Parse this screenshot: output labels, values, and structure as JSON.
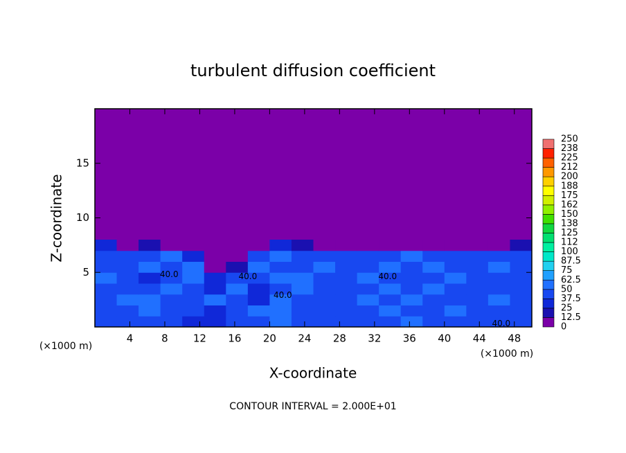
{
  "chart_data": {
    "type": "heatmap",
    "title": "turbulent diffusion coefficient",
    "x_label": "X-coordinate",
    "y_label": "Z-coordinate",
    "x_unit": "(×1000 m)",
    "y_unit": "(×1000 m)",
    "footer": "CONTOUR INTERVAL = 2.000E+01",
    "xlim": [
      0,
      50
    ],
    "ylim": [
      0,
      20
    ],
    "xticks": [
      4,
      8,
      12,
      16,
      20,
      24,
      28,
      32,
      36,
      40,
      44,
      48
    ],
    "yticks": [
      5,
      10,
      15
    ],
    "x": [
      1.25,
      3.75,
      6.25,
      8.75,
      11.25,
      13.75,
      16.25,
      18.75,
      21.25,
      23.75,
      26.25,
      28.75,
      31.25,
      33.75,
      36.25,
      38.75,
      41.25,
      43.75,
      46.25,
      48.75
    ],
    "y": [
      0.5,
      1.5,
      2.5,
      3.5,
      4.5,
      5.5,
      6.5,
      7.5
    ],
    "z": [
      [
        40,
        45,
        38,
        42,
        30,
        35,
        45,
        40,
        55,
        48,
        42,
        38,
        45,
        40,
        50,
        42,
        38,
        45,
        40,
        42
      ],
      [
        45,
        40,
        50,
        42,
        48,
        35,
        42,
        55,
        60,
        45,
        40,
        48,
        42,
        50,
        45,
        40,
        55,
        48,
        38,
        45
      ],
      [
        38,
        50,
        55,
        40,
        45,
        55,
        42,
        35,
        58,
        40,
        45,
        42,
        50,
        40,
        55,
        48,
        40,
        42,
        50,
        40
      ],
      [
        45,
        42,
        48,
        52,
        40,
        25,
        58,
        30,
        48,
        52,
        40,
        45,
        38,
        55,
        42,
        50,
        45,
        40,
        48,
        42
      ],
      [
        50,
        40,
        35,
        48,
        55,
        30,
        40,
        45,
        50,
        55,
        42,
        48,
        52,
        40,
        48,
        45,
        50,
        42,
        45,
        48
      ],
      [
        40,
        48,
        55,
        42,
        50,
        10,
        20,
        52,
        45,
        48,
        55,
        40,
        45,
        50,
        42,
        55,
        40,
        45,
        50,
        42
      ],
      [
        42,
        45,
        40,
        50,
        35,
        0,
        0,
        45,
        50,
        40,
        42,
        48,
        40,
        45,
        52,
        40,
        48,
        42,
        40,
        45
      ],
      [
        30,
        0,
        20,
        0,
        0,
        0,
        0,
        0,
        25,
        15,
        0,
        0,
        0,
        5,
        10,
        0,
        5,
        0,
        0,
        20
      ]
    ],
    "levels": [
      0,
      12.5,
      25,
      37.5,
      50,
      62.5,
      75,
      87.5,
      100,
      {
        "value": 112.5,
        "label": "112"
      },
      125,
      {
        "value": 137.5,
        "label": "138"
      },
      150,
      {
        "value": 162.5,
        "label": "162"
      },
      175,
      {
        "value": 187.5,
        "label": "188"
      },
      200,
      {
        "value": 212.5,
        "label": "212"
      },
      225,
      {
        "value": 237.5,
        "label": "238"
      },
      250
    ],
    "colors": [
      "#7b00a8",
      "#1a10b0",
      "#1028d8",
      "#1848f0",
      "#2070ff",
      "#20a0ff",
      "#20d0f0",
      "#00e8c8",
      "#00f0a0",
      "#00e070",
      "#10d840",
      "#40e000",
      "#90f000",
      "#d0f000",
      "#ffff00",
      "#ffd000",
      "#ff9800",
      "#ff6000",
      "#ff2000",
      "#f07070"
    ],
    "annotations": [
      {
        "text": "40.0",
        "x": 8.5,
        "y": 4.8
      },
      {
        "text": "40.0",
        "x": 17.5,
        "y": 4.6
      },
      {
        "text": "40.0",
        "x": 21.5,
        "y": 2.9
      },
      {
        "text": "40.0",
        "x": 33.5,
        "y": 4.6
      },
      {
        "text": "40.0",
        "x": 46.5,
        "y": 0.3
      }
    ]
  }
}
